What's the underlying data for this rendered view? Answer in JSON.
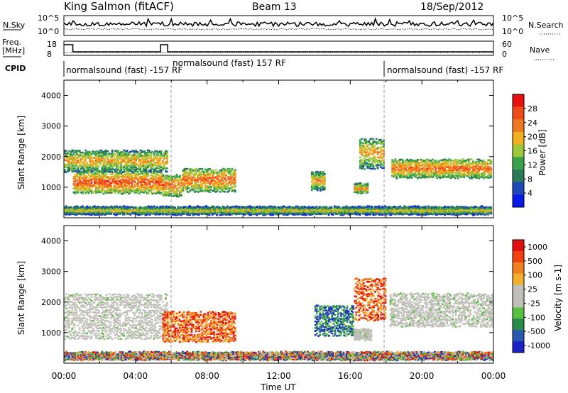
{
  "header": {
    "station": "King Salmon (fitACF)",
    "beam": "Beam 13",
    "date": "18/Sep/2012"
  },
  "strip_noise": {
    "left_label": "N.Sky",
    "right_label": "N.Search",
    "left_ticks": [
      "10^5",
      "10^0"
    ],
    "right_ticks": [
      "10^5",
      "10^0"
    ]
  },
  "strip_freq": {
    "left_label_1": "Freq.",
    "left_label_2": "[MHz]",
    "left_ticks": [
      "18",
      "8"
    ],
    "right_label": "Nave",
    "right_ticks": [
      "60",
      "0"
    ]
  },
  "cpid": {
    "label": "CPID",
    "segments": [
      {
        "text": "normalsound (fast) -157 RF",
        "start_hour": 0.0
      },
      {
        "text": "normalsound (fast) 157 RF",
        "start_hour": 6.0
      },
      {
        "text": "normalsound (fast) -157 RF",
        "start_hour": 18.0
      }
    ]
  },
  "colors": {
    "power_scale": [
      "#0a1ae8",
      "#2047b8",
      "#2a7a5a",
      "#3aa24a",
      "#9ec83a",
      "#f0b020",
      "#f07820",
      "#f04c1a",
      "#e81010"
    ],
    "velocity_scale": [
      "#1a22c8",
      "#2a5ab0",
      "#2a8a4a",
      "#5ac040",
      "#c0c0b8",
      "#c0c0b8",
      "#f0b030",
      "#f08020",
      "#f04010",
      "#e01010"
    ]
  },
  "chart_data": [
    {
      "type": "heatmap",
      "quantity": "Power",
      "ylabel": "Slant Range [km]",
      "xlabel": "Time UT",
      "ylim": [
        0,
        4500
      ],
      "xlim_hours": [
        0,
        24
      ],
      "y_ticks": [
        "1000",
        "2000",
        "3000",
        "4000"
      ],
      "colorbar": {
        "label": "Power [dB]",
        "ticks": [
          "4",
          "8",
          "12",
          "16",
          "20",
          "24",
          "28"
        ],
        "range": [
          0,
          32
        ]
      },
      "echo_regions": [
        {
          "t0": 0.5,
          "t1": 5.5,
          "r0": 800,
          "r1": 1500,
          "level": 0.65
        },
        {
          "t0": 0.0,
          "t1": 5.8,
          "r0": 1500,
          "r1": 2200,
          "level": 0.35
        },
        {
          "t0": 5.5,
          "t1": 6.6,
          "r0": 700,
          "r1": 1400,
          "level": 0.55
        },
        {
          "t0": 6.6,
          "t1": 9.6,
          "r0": 850,
          "r1": 1600,
          "level": 0.55
        },
        {
          "t0": 13.8,
          "t1": 14.6,
          "r0": 900,
          "r1": 1500,
          "level": 0.35
        },
        {
          "t0": 16.2,
          "t1": 17.0,
          "r0": 800,
          "r1": 1100,
          "level": 0.45
        },
        {
          "t0": 16.5,
          "t1": 17.9,
          "r0": 1600,
          "r1": 2600,
          "level": 0.35
        },
        {
          "t0": 18.3,
          "t1": 23.9,
          "r0": 1300,
          "r1": 1900,
          "level": 0.55
        },
        {
          "t0": 0.0,
          "t1": 23.9,
          "r0": 100,
          "r1": 350,
          "level": 0.2
        }
      ]
    },
    {
      "type": "heatmap",
      "quantity": "Velocity",
      "ylabel": "Slant Range [km]",
      "xlabel": "Time UT",
      "ylim": [
        0,
        4500
      ],
      "xlim_hours": [
        0,
        24
      ],
      "y_ticks": [
        "1000",
        "2000",
        "3000",
        "4000"
      ],
      "x_ticks": [
        "00:00",
        "04:00",
        "08:00",
        "12:00",
        "16:00",
        "20:00",
        "00:00"
      ],
      "colorbar": {
        "label": "Velocity [m s-1]",
        "ticks": [
          "1000",
          "500",
          "100",
          "25",
          "-25",
          "-100",
          "-500",
          "-1000"
        ]
      },
      "echo_regions": [
        {
          "t0": 0.0,
          "t1": 5.8,
          "r0": 800,
          "r1": 2300,
          "class": "ground"
        },
        {
          "t0": 5.5,
          "t1": 9.6,
          "r0": 700,
          "r1": 1700,
          "class": "away"
        },
        {
          "t0": 14.0,
          "t1": 16.2,
          "r0": 900,
          "r1": 1900,
          "class": "toward"
        },
        {
          "t0": 16.2,
          "t1": 18.0,
          "r0": 1400,
          "r1": 2800,
          "class": "away"
        },
        {
          "t0": 16.2,
          "t1": 17.2,
          "r0": 750,
          "r1": 1100,
          "class": "ground"
        },
        {
          "t0": 18.2,
          "t1": 24.0,
          "r0": 1200,
          "r1": 2300,
          "class": "ground"
        },
        {
          "t0": 0.0,
          "t1": 24.0,
          "r0": 100,
          "r1": 350,
          "class": "mixed"
        }
      ]
    }
  ]
}
